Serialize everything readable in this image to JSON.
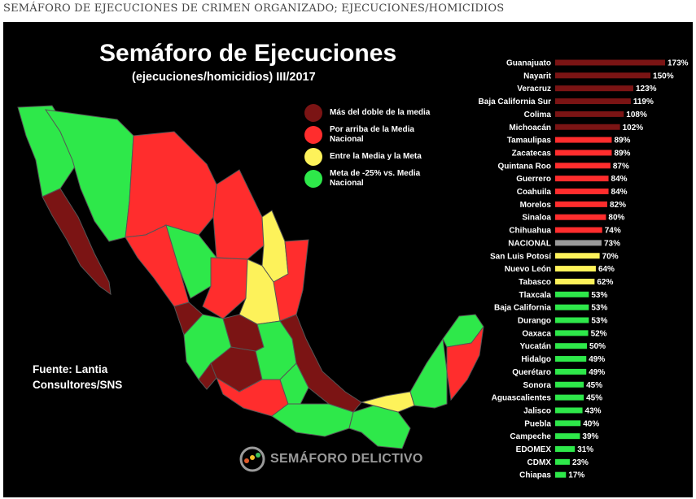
{
  "caption": "SEMÁFORO DE EJECUCIONES DE CRIMEN ORGANIZADO; EJECUCIONES/HOMICIDIOS",
  "title": "Semáforo de Ejecuciones",
  "subtitle": "(ejecuciones/homicidios) III/2017",
  "legend": [
    {
      "label": "Más del doble de la media",
      "color": "#7b1414"
    },
    {
      "label": "Por arriba de la Media Nacional",
      "color": "#ff2d2d"
    },
    {
      "label": "Entre la Media y la Meta",
      "color": "#fdf25a"
    },
    {
      "label": "Meta de -25% vs. Media Nacional",
      "color": "#2ee84a"
    }
  ],
  "source_line1": "Fuente: Lantia",
  "source_line2": "Consultores/SNS",
  "logo_text": "SEMÁFORO DELICTIVO",
  "colors": {
    "dark_red": "#7b1414",
    "red": "#ff2d2d",
    "yellow": "#fdf25a",
    "green": "#2ee84a",
    "gray": "#9a9a9a"
  },
  "chart_data": {
    "type": "bar",
    "orientation": "horizontal",
    "unit": "%",
    "categories": [
      "Guanajuato",
      "Nayarit",
      "Veracruz",
      "Baja California Sur",
      "Colima",
      "Michoacán",
      "Tamaulipas",
      "Zacatecas",
      "Quintana Roo",
      "Guerrero",
      "Coahuila",
      "Morelos",
      "Sinaloa",
      "Chihuahua",
      "NACIONAL",
      "San Luis Potosí",
      "Nuevo León",
      "Tabasco",
      "Tlaxcala",
      "Baja California",
      "Durango",
      "Oaxaca",
      "Yucatán",
      "Hidalgo",
      "Querétaro",
      "Sonora",
      "Aguascalientes",
      "Jalisco",
      "Puebla",
      "Campeche",
      "EDOMEX",
      "CDMX",
      "Chiapas"
    ],
    "values": [
      173,
      150,
      123,
      119,
      108,
      102,
      89,
      89,
      87,
      84,
      84,
      82,
      80,
      74,
      73,
      70,
      64,
      62,
      53,
      53,
      53,
      52,
      50,
      49,
      49,
      45,
      45,
      43,
      40,
      39,
      31,
      23,
      17
    ],
    "value_labels": [
      "173%",
      "150%",
      "123%",
      "119%",
      "108%",
      "102%",
      "89%",
      "89%",
      "87%",
      "84%",
      "84%",
      "82%",
      "80%",
      "74%",
      "73%",
      "70%",
      "64%",
      "62%",
      "53%",
      "53%",
      "53%",
      "52%",
      "50%",
      "49%",
      "49%",
      "45%",
      "45%",
      "43%",
      "40%",
      "39%",
      "31%",
      "23%",
      "17%"
    ],
    "bar_color_class": [
      "dark_red",
      "dark_red",
      "dark_red",
      "dark_red",
      "dark_red",
      "dark_red",
      "red",
      "red",
      "red",
      "red",
      "red",
      "red",
      "red",
      "red",
      "gray",
      "yellow",
      "yellow",
      "yellow",
      "green",
      "green",
      "green",
      "green",
      "green",
      "green",
      "green",
      "green",
      "green",
      "green",
      "green",
      "green",
      "green",
      "green",
      "green"
    ],
    "xlim": [
      0,
      173
    ]
  }
}
